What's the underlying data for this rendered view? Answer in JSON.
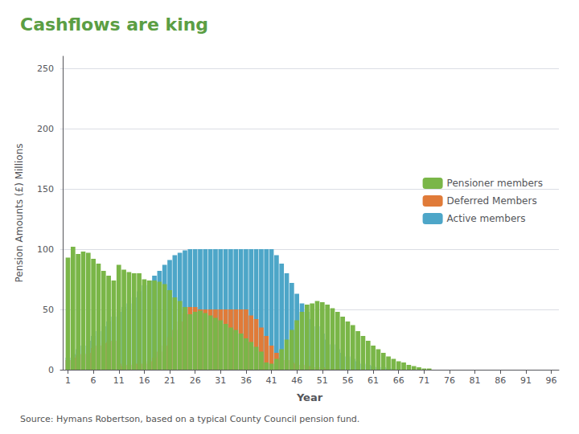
{
  "chart_data": {
    "type": "bar",
    "title": "Cashflows are king",
    "subtitle": "Source: Hymans Robertson, based on a typical County Council pension fund.",
    "xlabel": "Year",
    "ylabel": "Pension Amounts (£) Millions",
    "stacked": true,
    "grid": true,
    "legend": "right",
    "x": [
      1,
      2,
      3,
      4,
      5,
      6,
      7,
      8,
      9,
      10,
      11,
      12,
      13,
      14,
      15,
      16,
      17,
      18,
      19,
      20,
      21,
      22,
      23,
      24,
      25,
      26,
      27,
      28,
      29,
      30,
      31,
      32,
      33,
      34,
      35,
      36,
      37,
      38,
      39,
      40,
      41,
      42,
      43,
      44,
      45,
      46,
      47,
      48,
      49,
      50,
      51,
      52,
      53,
      54,
      55,
      56,
      57,
      58,
      59,
      60,
      61,
      62,
      63,
      64,
      65,
      66,
      67,
      68,
      69,
      70,
      71,
      72,
      73,
      74,
      75,
      76,
      77,
      78,
      79,
      80,
      81,
      82,
      83,
      84,
      85,
      86,
      87,
      88,
      89,
      90,
      91,
      92,
      93,
      94,
      95,
      96
    ],
    "xlim": [
      -0.5,
      97.5
    ],
    "xticks": [
      1,
      6,
      11,
      16,
      21,
      26,
      31,
      36,
      41,
      46,
      51,
      56,
      61,
      66,
      71,
      76,
      81,
      86,
      91,
      96
    ],
    "ylim": [
      0,
      260
    ],
    "yticks": [
      0,
      50,
      100,
      150,
      200,
      250
    ],
    "series": [
      {
        "name": "Active members",
        "color": "#4da6c8",
        "values": [
          10,
          13,
          17,
          20,
          24,
          28,
          32,
          36,
          40,
          44,
          48,
          52,
          55,
          60,
          65,
          70,
          74,
          78,
          82,
          87,
          91,
          95,
          97,
          99,
          100,
          100,
          100,
          100,
          100,
          100,
          100,
          100,
          100,
          100,
          100,
          100,
          100,
          100,
          100,
          100,
          100,
          95,
          88,
          80,
          72,
          63,
          55,
          48,
          42,
          36,
          30,
          25,
          21,
          17,
          14,
          11,
          9,
          7,
          5,
          4,
          3,
          2,
          2,
          1,
          1,
          0,
          0,
          0,
          0,
          0,
          0,
          0,
          0,
          0,
          0,
          0,
          0,
          0,
          0,
          0,
          0,
          0,
          0,
          0,
          0,
          0,
          0,
          0,
          0,
          0,
          0,
          0,
          0,
          0,
          0,
          0
        ]
      },
      {
        "name": "Deferred Members",
        "color": "#e07b39",
        "values": [
          8,
          10,
          12,
          13,
          14,
          18,
          20,
          22,
          23,
          24,
          5,
          3,
          4,
          5,
          5,
          5,
          7,
          10,
          15,
          20,
          27,
          33,
          40,
          47,
          52,
          52,
          50,
          50,
          50,
          50,
          50,
          50,
          50,
          50,
          50,
          50,
          45,
          42,
          35,
          28,
          20,
          14,
          10,
          8,
          6,
          5,
          4,
          3,
          3,
          2,
          2,
          1,
          1,
          1,
          0,
          0,
          0,
          0,
          0,
          0,
          0,
          0,
          0,
          0,
          0,
          0,
          0,
          0,
          0,
          0,
          0,
          0,
          0,
          0,
          0,
          0,
          0,
          0,
          0,
          0,
          0,
          0,
          0,
          0,
          0,
          0,
          0,
          0,
          0,
          0,
          0,
          0,
          0,
          0,
          0,
          0
        ]
      },
      {
        "name": "Pensioner members",
        "color": "#7ab648",
        "values": [
          93,
          102,
          96,
          98,
          97,
          92,
          88,
          82,
          78,
          74,
          87,
          83,
          81,
          80,
          80,
          75,
          74,
          74,
          73,
          71,
          66,
          60,
          57,
          52,
          46,
          48,
          49,
          47,
          45,
          43,
          41,
          38,
          35,
          33,
          30,
          26,
          23,
          19,
          15,
          6,
          5,
          9,
          17,
          25,
          33,
          41,
          48,
          54,
          55,
          57,
          56,
          54,
          51,
          48,
          44,
          40,
          37,
          32,
          28,
          24,
          20,
          17,
          14,
          11,
          9,
          7,
          6,
          4,
          3,
          2,
          1,
          1,
          0,
          0,
          0,
          0,
          0,
          0,
          0,
          0,
          0,
          0,
          0,
          0,
          0,
          0,
          0,
          0,
          0,
          0,
          0,
          0,
          0,
          0,
          0,
          0
        ]
      }
    ]
  }
}
